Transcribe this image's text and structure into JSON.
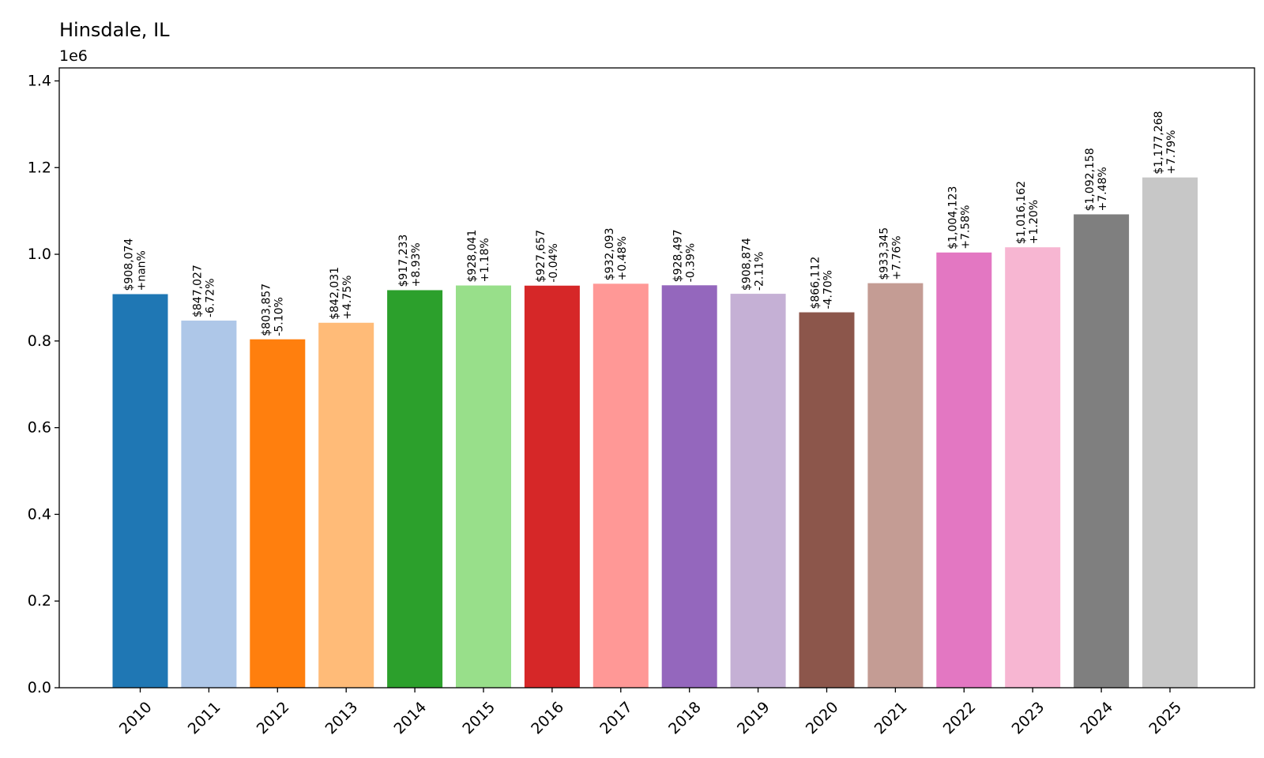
{
  "chart_data": {
    "type": "bar",
    "title": "Hinsdale, IL",
    "xlabel": "",
    "ylabel": "",
    "y_offset_label": "1e6",
    "ylim": [
      0,
      1.43
    ],
    "yticks": [
      "0.0",
      "0.2",
      "0.4",
      "0.6",
      "0.8",
      "1.0",
      "1.2",
      "1.4"
    ],
    "ytick_values": [
      0,
      0.2,
      0.4,
      0.6,
      0.8,
      1.0,
      1.2,
      1.4
    ],
    "grid": false,
    "categories": [
      "2010",
      "2011",
      "2012",
      "2013",
      "2014",
      "2015",
      "2016",
      "2017",
      "2018",
      "2019",
      "2020",
      "2021",
      "2022",
      "2023",
      "2024",
      "2025"
    ],
    "values": [
      908074,
      847027,
      803857,
      842031,
      917233,
      928041,
      927657,
      932093,
      928497,
      908874,
      866112,
      933345,
      1004123,
      1016162,
      1092158,
      1177268
    ],
    "value_labels": [
      "$908,074",
      "$847,027",
      "$803,857",
      "$842,031",
      "$917,233",
      "$928,041",
      "$927,657",
      "$932,093",
      "$928,497",
      "$908,874",
      "$866,112",
      "$933,345",
      "$1,004,123",
      "$1,016,162",
      "$1,092,158",
      "$1,177,268"
    ],
    "change_labels": [
      "+nan%",
      "-6.72%",
      "-5.10%",
      "+4.75%",
      "+8.93%",
      "+1.18%",
      "-0.04%",
      "+0.48%",
      "-0.39%",
      "-2.11%",
      "-4.70%",
      "+7.76%",
      "+7.58%",
      "+1.20%",
      "+7.48%",
      "+7.79%"
    ],
    "colors": [
      "#1f77b4",
      "#aec7e8",
      "#ff7f0e",
      "#ffbb78",
      "#2ca02c",
      "#98df8a",
      "#d62728",
      "#ff9896",
      "#9467bd",
      "#c5b0d5",
      "#8c564b",
      "#c49c94",
      "#e377c2",
      "#f7b6d2",
      "#7f7f7f",
      "#c7c7c7"
    ]
  }
}
